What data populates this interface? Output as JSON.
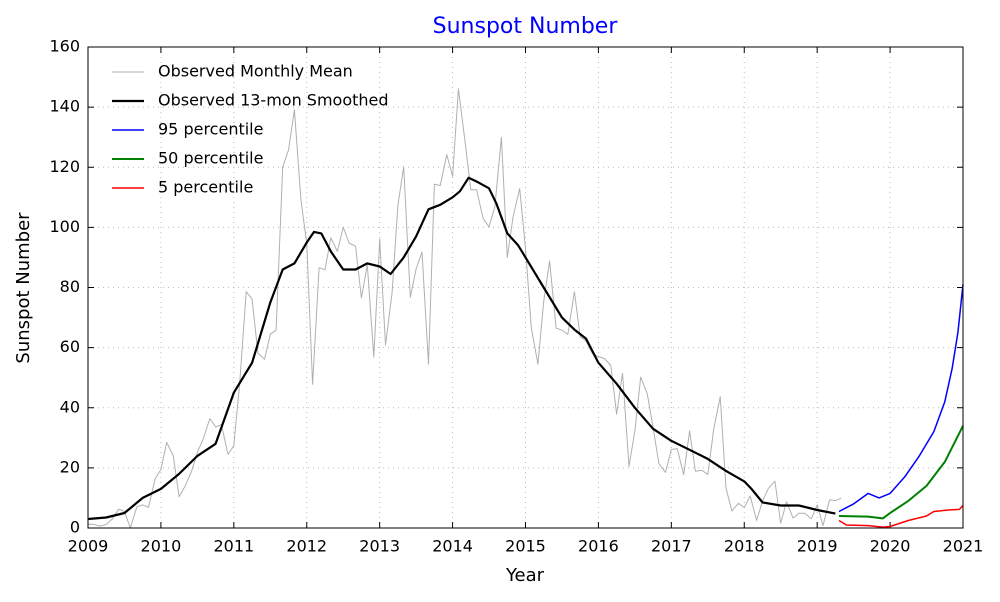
{
  "chart_data": {
    "type": "line",
    "title": "Sunspot Number",
    "xlabel": "Year",
    "ylabel": "Sunspot Number",
    "title_color": "#0000ff",
    "xlim": [
      2009,
      2021
    ],
    "xticks": [
      2009,
      2010,
      2011,
      2012,
      2013,
      2014,
      2015,
      2016,
      2017,
      2018,
      2019,
      2020,
      2021
    ],
    "ylim": [
      0,
      160
    ],
    "yticks": [
      0,
      20,
      40,
      60,
      80,
      100,
      120,
      140,
      160
    ],
    "grid": true,
    "legend": "upper left",
    "series": [
      {
        "name": "Observed Monthly Mean",
        "color": "#b0b0b0",
        "width": 1,
        "x": [
          2009.0,
          2009.08,
          2009.17,
          2009.25,
          2009.33,
          2009.42,
          2009.5,
          2009.58,
          2009.67,
          2009.75,
          2009.83,
          2009.92,
          2010.0,
          2010.08,
          2010.17,
          2010.25,
          2010.33,
          2010.42,
          2010.5,
          2010.58,
          2010.67,
          2010.75,
          2010.83,
          2010.92,
          2011.0,
          2011.08,
          2011.17,
          2011.25,
          2011.33,
          2011.42,
          2011.5,
          2011.58,
          2011.67,
          2011.75,
          2011.83,
          2011.92,
          2012.0,
          2012.08,
          2012.17,
          2012.25,
          2012.33,
          2012.42,
          2012.5,
          2012.58,
          2012.67,
          2012.75,
          2012.83,
          2012.92,
          2013.0,
          2013.08,
          2013.17,
          2013.25,
          2013.33,
          2013.42,
          2013.5,
          2013.58,
          2013.67,
          2013.75,
          2013.83,
          2013.92,
          2014.0,
          2014.08,
          2014.17,
          2014.25,
          2014.33,
          2014.42,
          2014.5,
          2014.58,
          2014.67,
          2014.75,
          2014.83,
          2014.92,
          2015.0,
          2015.08,
          2015.17,
          2015.25,
          2015.33,
          2015.42,
          2015.5,
          2015.58,
          2015.67,
          2015.75,
          2015.83,
          2015.92,
          2016.0,
          2016.08,
          2016.17,
          2016.25,
          2016.33,
          2016.42,
          2016.5,
          2016.58,
          2016.67,
          2016.75,
          2016.83,
          2016.92,
          2017.0,
          2017.08,
          2017.17,
          2017.25,
          2017.33,
          2017.42,
          2017.5,
          2017.58,
          2017.67,
          2017.75,
          2017.83,
          2017.92,
          2018.0,
          2018.08,
          2018.17,
          2018.25,
          2018.33,
          2018.42,
          2018.5,
          2018.58,
          2018.67,
          2018.75,
          2018.83,
          2018.92,
          2019.0,
          2019.08,
          2019.17,
          2019.25,
          2019.33
        ],
        "values": [
          1.3,
          1.2,
          0.6,
          1.2,
          2.9,
          6.3,
          5.5,
          0,
          7.1,
          7.7,
          6.9,
          16.3,
          19.5,
          28.5,
          24,
          10.4,
          13.9,
          18.8,
          25.2,
          29.6,
          36.4,
          33.6,
          34.4,
          24.5,
          27.3,
          48.3,
          78.6,
          76.1,
          58.2,
          56.1,
          64.5,
          65.8,
          120.1,
          125.7,
          139.1,
          109.3,
          94.4,
          47.8,
          86.6,
          85.9,
          96.5,
          92,
          100.1,
          94.8,
          93.7,
          76.5,
          87.6,
          56.8,
          96.1,
          60.9,
          78.3,
          107.3,
          120.2,
          76.7,
          86.2,
          91.8,
          54.5,
          114.4,
          113.9,
          124.2,
          117,
          146.1,
          128.7,
          112.5,
          112.5,
          102.9,
          100.2,
          106.9,
          130,
          90,
          103.6,
          112.9,
          93,
          66.7,
          54.5,
          75.3,
          88.8,
          66.5,
          65.8,
          64.4,
          78.6,
          63.6,
          62.2,
          58,
          57,
          56.4,
          54.1,
          37.9,
          51.5,
          20.5,
          32.4,
          50.2,
          44.6,
          33.4,
          21.4,
          18.5,
          26.1,
          26.4,
          17.7,
          32.3,
          18.9,
          19.2,
          17.8,
          32.6,
          43.7,
          13.2,
          5.7,
          8.2,
          6.8,
          10.7,
          2.5,
          8.9,
          13.1,
          15.6,
          1.6,
          8.7,
          3.3,
          4.9,
          4.9,
          3.1,
          7.7,
          0.8,
          9.4,
          9.1,
          9.9
        ]
      },
      {
        "name": "Observed 13-mon Smoothed",
        "color": "#000000",
        "width": 2.2,
        "x": [
          2009.0,
          2009.25,
          2009.5,
          2009.75,
          2010.0,
          2010.25,
          2010.5,
          2010.75,
          2011.0,
          2011.25,
          2011.5,
          2011.67,
          2011.83,
          2012.0,
          2012.1,
          2012.2,
          2012.33,
          2012.5,
          2012.67,
          2012.83,
          2013.0,
          2013.15,
          2013.33,
          2013.5,
          2013.67,
          2013.83,
          2014.0,
          2014.1,
          2014.22,
          2014.35,
          2014.5,
          2014.6,
          2014.75,
          2014.9,
          2015.0,
          2015.25,
          2015.5,
          2015.67,
          2015.83,
          2016.0,
          2016.25,
          2016.5,
          2016.75,
          2017.0,
          2017.25,
          2017.5,
          2017.75,
          2018.0,
          2018.1,
          2018.25,
          2018.5,
          2018.75,
          2019.0,
          2019.25
        ],
        "values": [
          3,
          3.5,
          5,
          10,
          13,
          18,
          24,
          28,
          45,
          55,
          75,
          86,
          88,
          95,
          98.5,
          98,
          92,
          86,
          86,
          88,
          87,
          84.5,
          90,
          97,
          106,
          107.5,
          110,
          112,
          116.5,
          115,
          113,
          108,
          98,
          94,
          90,
          80,
          70,
          66,
          63,
          55,
          48,
          40,
          33,
          29,
          26,
          23,
          19,
          15.5,
          13,
          8.5,
          7.5,
          7.5,
          6,
          4.8
        ]
      },
      {
        "name": "95 percentile",
        "color": "#0000ff",
        "width": 1.5,
        "x": [
          2019.3,
          2019.5,
          2019.7,
          2019.85,
          2020.0,
          2020.2,
          2020.4,
          2020.6,
          2020.75,
          2020.85,
          2020.93,
          2021.0
        ],
        "values": [
          5.5,
          8,
          11.5,
          10,
          11.5,
          17,
          24,
          32,
          42,
          53,
          65,
          81
        ]
      },
      {
        "name": "50 percentile",
        "color": "#008000",
        "width": 2,
        "x": [
          2019.3,
          2019.7,
          2019.9,
          2020.0,
          2020.25,
          2020.5,
          2020.75,
          2021.0
        ],
        "values": [
          4,
          3.8,
          3.2,
          5,
          9,
          14,
          22,
          34
        ]
      },
      {
        "name": "5 percentile",
        "color": "#ff0000",
        "width": 1.5,
        "x": [
          2019.3,
          2019.4,
          2019.7,
          2019.9,
          2020.0,
          2020.25,
          2020.5,
          2020.6,
          2020.8,
          2020.95,
          2021.0
        ],
        "values": [
          2.5,
          1,
          0.8,
          0.3,
          0.5,
          2.5,
          4,
          5.5,
          6,
          6.2,
          7.5
        ]
      }
    ]
  }
}
